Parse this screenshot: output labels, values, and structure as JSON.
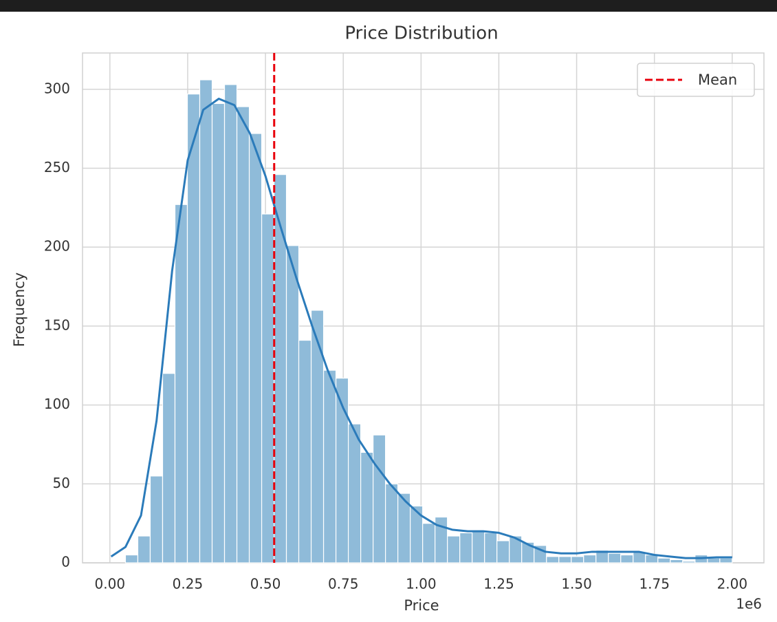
{
  "chart_data": {
    "type": "histogram",
    "title": "Price Distribution",
    "x_label": "Price",
    "y_label": "Frequency",
    "x_offset_label": "1e6",
    "bins": [
      0.05,
      0.0898,
      0.1296,
      0.1694,
      0.2092,
      0.249,
      0.2888,
      0.3286,
      0.3684,
      0.4082,
      0.448,
      0.4878,
      0.5276,
      0.5673,
      0.6071,
      0.6469,
      0.6867,
      0.7265,
      0.7663,
      0.8061,
      0.8459,
      0.8857,
      0.9255,
      0.9653,
      1.0051,
      1.0449,
      1.0847,
      1.1245,
      1.1643,
      1.2041,
      1.2439,
      1.2837,
      1.3235,
      1.3633,
      1.4031,
      1.4429,
      1.4827,
      1.5224,
      1.5622,
      1.602,
      1.6418,
      1.6816,
      1.7214,
      1.7612,
      1.801,
      1.8408,
      1.8806,
      1.9204,
      1.9602,
      2.0
    ],
    "values": [
      5,
      17,
      55,
      120,
      227,
      297,
      306,
      291,
      303,
      289,
      272,
      221,
      246,
      201,
      141,
      160,
      122,
      117,
      88,
      70,
      81,
      50,
      44,
      36,
      25,
      29,
      17,
      19,
      20,
      19,
      14,
      17,
      13,
      11,
      4,
      4,
      4,
      5,
      8,
      6,
      5,
      7,
      5,
      3,
      2,
      1,
      5,
      3,
      3
    ],
    "color": "#8fbbd9",
    "kde": {
      "color": "#2b7bba",
      "x": [
        0.004,
        0.05,
        0.1,
        0.15,
        0.2,
        0.25,
        0.3,
        0.35,
        0.4,
        0.45,
        0.5,
        0.55,
        0.6,
        0.65,
        0.7,
        0.75,
        0.8,
        0.85,
        0.9,
        0.95,
        1.0,
        1.05,
        1.1,
        1.15,
        1.2,
        1.25,
        1.3,
        1.35,
        1.4,
        1.45,
        1.5,
        1.55,
        1.6,
        1.65,
        1.7,
        1.75,
        1.8,
        1.85,
        1.9,
        1.95,
        2.0
      ],
      "values": [
        4,
        10,
        30,
        90,
        185,
        255,
        287,
        294,
        290,
        272,
        245,
        212,
        180,
        150,
        122,
        98,
        78,
        63,
        50,
        39,
        30,
        24,
        21,
        20,
        20,
        19,
        16,
        11,
        7,
        6,
        6,
        7,
        7,
        7,
        7,
        5,
        4,
        3,
        3,
        3.5,
        3.5
      ]
    },
    "mean_line": {
      "value": 0.528,
      "label": "Mean",
      "color": "#e8000b"
    },
    "xlim": [
      -0.088,
      2.102
    ],
    "ylim": [
      0,
      323
    ],
    "xticks": [
      {
        "value": 0,
        "label": "0.00"
      },
      {
        "value": 0.25,
        "label": "0.25"
      },
      {
        "value": 0.5,
        "label": "0.50"
      },
      {
        "value": 0.75,
        "label": "0.75"
      },
      {
        "value": 1,
        "label": "1.00"
      },
      {
        "value": 1.25,
        "label": "1.25"
      },
      {
        "value": 1.5,
        "label": "1.50"
      },
      {
        "value": 1.75,
        "label": "1.75"
      },
      {
        "value": 2,
        "label": "2.00"
      }
    ],
    "yticks": [
      0,
      50,
      100,
      150,
      200,
      250,
      300
    ],
    "grid": true,
    "legend_position": "upper right"
  }
}
